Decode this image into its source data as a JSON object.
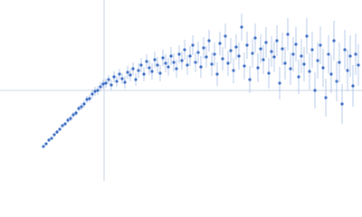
{
  "chart_data": {
    "type": "scatter",
    "x": [
      48,
      51,
      54,
      57,
      60,
      63,
      66,
      69,
      72,
      75,
      78,
      81,
      84,
      87,
      90,
      93,
      96,
      99,
      102,
      105,
      108,
      111,
      114,
      117,
      120,
      123,
      126,
      129,
      132,
      135,
      138,
      141,
      144,
      147,
      150,
      153,
      156,
      159,
      162,
      165,
      168,
      171,
      174,
      177,
      180,
      183,
      186,
      189,
      192,
      195,
      198,
      201,
      204,
      207,
      210,
      213,
      216,
      219,
      222,
      225,
      228,
      231,
      234,
      237,
      240,
      243,
      246,
      249,
      252,
      255,
      258,
      261,
      264,
      267,
      270,
      273,
      276,
      279,
      282,
      285,
      288,
      291,
      294,
      297,
      300,
      303,
      306,
      309,
      312,
      315,
      318,
      321,
      324,
      327,
      330,
      333,
      336,
      339,
      342,
      345,
      348,
      351,
      354,
      357,
      360,
      363,
      366,
      369,
      372,
      375,
      378,
      381,
      384,
      387,
      390,
      393,
      396
    ],
    "values": [
      38,
      41,
      45,
      47,
      51,
      54,
      57,
      61,
      63,
      67,
      69,
      73,
      75,
      80,
      82,
      85,
      90,
      91,
      96,
      99,
      100,
      104,
      107,
      108,
      112,
      106,
      115,
      110,
      118,
      113,
      109,
      120,
      117,
      124,
      112,
      122,
      128,
      118,
      132,
      125,
      121,
      134,
      128,
      119,
      136,
      130,
      126,
      138,
      131,
      124,
      140,
      133,
      145,
      128,
      138,
      150,
      131,
      142,
      126,
      147,
      137,
      155,
      129,
      140,
      118,
      152,
      135,
      160,
      130,
      144,
      122,
      148,
      138,
      170,
      127,
      150,
      112,
      141,
      158,
      125,
      146,
      134,
      153,
      119,
      143,
      137,
      155,
      108,
      146,
      130,
      162,
      124,
      140,
      151,
      115,
      138,
      129,
      160,
      121,
      145,
      100,
      133,
      150,
      125,
      92,
      140,
      118,
      155,
      110,
      131,
      85,
      145,
      122,
      138,
      105,
      140,
      128
    ],
    "errors": [
      1,
      1,
      1,
      1,
      2,
      2,
      2,
      2,
      2,
      3,
      3,
      3,
      3,
      3,
      4,
      4,
      4,
      4,
      5,
      5,
      5,
      5,
      5,
      5,
      5,
      6,
      6,
      6,
      6,
      6,
      7,
      7,
      7,
      7,
      7,
      8,
      8,
      8,
      8,
      8,
      9,
      9,
      9,
      9,
      9,
      10,
      10,
      10,
      10,
      10,
      10,
      10,
      11,
      11,
      11,
      11,
      11,
      12,
      12,
      12,
      12,
      12,
      13,
      13,
      13,
      13,
      13,
      14,
      14,
      14,
      14,
      14,
      15,
      15,
      15,
      15,
      15,
      16,
      16,
      16,
      16,
      16,
      17,
      17,
      17,
      17,
      17,
      18,
      18,
      18,
      18,
      18,
      19,
      19,
      19,
      19,
      19,
      20,
      20,
      20,
      20,
      20,
      21,
      21,
      21,
      21,
      21,
      22,
      22,
      22,
      22,
      22,
      23,
      23,
      23,
      23,
      23
    ],
    "color": "#3b6cc4",
    "error_color": "#a7bfe6",
    "xlim": [
      0,
      400
    ],
    "ylim": [
      0,
      200
    ],
    "hline": 100,
    "vline": 115,
    "ref_color": "#c8d4e6"
  }
}
